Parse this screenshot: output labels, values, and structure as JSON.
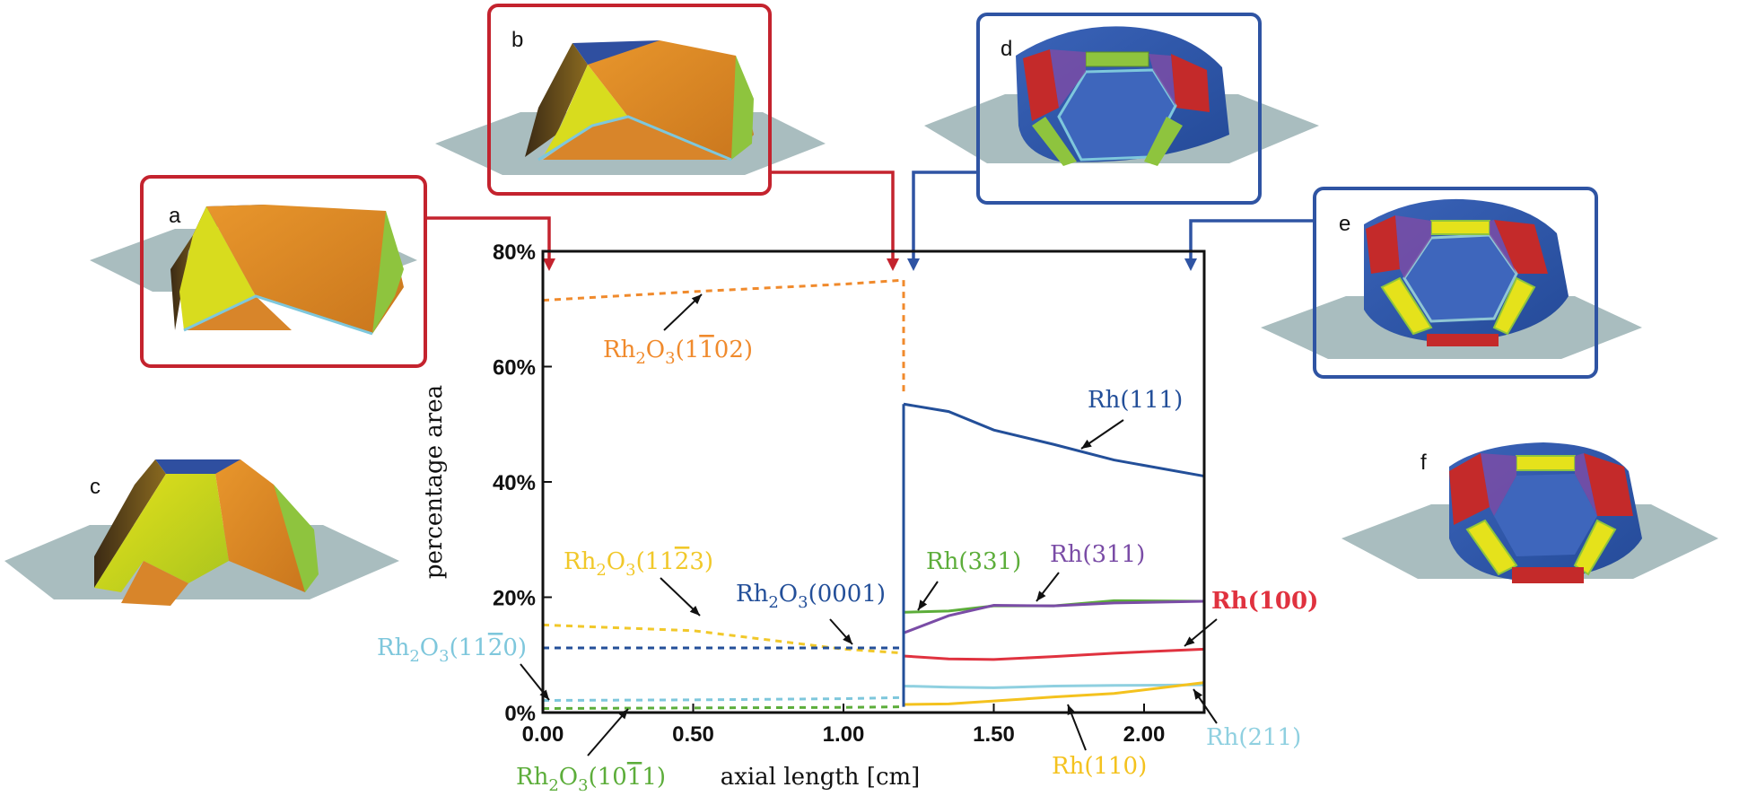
{
  "panels": [
    {
      "letter": "a",
      "framed": true,
      "frame_color": "#c4232e"
    },
    {
      "letter": "b",
      "framed": true,
      "frame_color": "#c4232e"
    },
    {
      "letter": "c",
      "framed": false
    },
    {
      "letter": "d",
      "framed": true,
      "frame_color": "#2f54a3"
    },
    {
      "letter": "e",
      "framed": true,
      "frame_color": "#2f54a3"
    },
    {
      "letter": "f",
      "framed": false
    }
  ],
  "chart_data": {
    "type": "line",
    "xlabel": "axial length [cm]",
    "ylabel": "percentage area",
    "xlim": [
      0,
      2.2
    ],
    "ylim": [
      0,
      80
    ],
    "xticks": [
      "0.00",
      "0.50",
      "1.00",
      "1.50",
      "2.00"
    ],
    "xtick_values": [
      0,
      0.5,
      1.0,
      1.5,
      2.0
    ],
    "yticks": [
      "0%",
      "20%",
      "40%",
      "60%",
      "80%"
    ],
    "ytick_values": [
      0,
      20,
      40,
      60,
      80
    ],
    "oxide_region": [
      0,
      1.2
    ],
    "metal_region": [
      1.2,
      2.2
    ],
    "series": [
      {
        "name": "Rh2O3(1-102)",
        "color": "#f08a2c",
        "dashed": true,
        "x": [
          0,
          0.5,
          1.0,
          1.2
        ],
        "y": [
          71.5,
          73,
          74.3,
          75
        ]
      },
      {
        "name": "Rh2O3(11-23)",
        "color": "#f1c82a",
        "dashed": true,
        "x": [
          0,
          0.5,
          1.0,
          1.2
        ],
        "y": [
          15.2,
          14.2,
          11.0,
          10.3
        ]
      },
      {
        "name": "Rh2O3(0001)",
        "color": "#234f99",
        "dashed": true,
        "x": [
          0,
          0.5,
          1.0,
          1.2
        ],
        "y": [
          11.2,
          11.2,
          11.2,
          11.2
        ]
      },
      {
        "name": "Rh2O3(11-20)",
        "color": "#7ec7dc",
        "dashed": true,
        "x": [
          0,
          0.5,
          1.0,
          1.2
        ],
        "y": [
          2.1,
          2.2,
          2.4,
          2.6
        ]
      },
      {
        "name": "Rh2O3(10-11)",
        "color": "#5cad3a",
        "dashed": true,
        "x": [
          0,
          0.5,
          1.0,
          1.2
        ],
        "y": [
          0.7,
          0.8,
          0.9,
          1.0
        ]
      },
      {
        "name": "Rh(111)",
        "color": "#234f99",
        "dashed": false,
        "x": [
          1.2,
          1.35,
          1.5,
          1.7,
          1.9,
          2.2
        ],
        "y": [
          53.5,
          52.2,
          49,
          46.5,
          43.8,
          41
        ]
      },
      {
        "name": "Rh(331)",
        "color": "#5cad3a",
        "dashed": false,
        "x": [
          1.2,
          1.35,
          1.5,
          1.7,
          1.9,
          2.2
        ],
        "y": [
          17.4,
          17.6,
          18.5,
          18.5,
          19.4,
          19.3
        ]
      },
      {
        "name": "Rh(311)",
        "color": "#7a4ca6",
        "dashed": false,
        "x": [
          1.2,
          1.35,
          1.5,
          1.7,
          1.9,
          2.2
        ],
        "y": [
          13.8,
          16.8,
          18.6,
          18.5,
          19.0,
          19.3
        ]
      },
      {
        "name": "Rh(100)",
        "color": "#e0323f",
        "dashed": false,
        "x": [
          1.2,
          1.35,
          1.5,
          1.7,
          1.9,
          2.2
        ],
        "y": [
          9.8,
          9.3,
          9.2,
          9.7,
          10.3,
          11.0
        ]
      },
      {
        "name": "Rh(211)",
        "color": "#8fd0e0",
        "dashed": false,
        "x": [
          1.2,
          1.35,
          1.5,
          1.7,
          1.9,
          2.2
        ],
        "y": [
          4.6,
          4.4,
          4.3,
          4.6,
          4.7,
          4.8
        ]
      },
      {
        "name": "Rh(110)",
        "color": "#f4c21e",
        "dashed": false,
        "x": [
          1.2,
          1.35,
          1.5,
          1.7,
          1.9,
          2.2
        ],
        "y": [
          1.4,
          1.5,
          2.0,
          2.7,
          3.3,
          5.2
        ]
      }
    ],
    "jump_lines": [
      {
        "series": "Rh2O3(1-102)",
        "color": "#f08a2c",
        "dashed": true,
        "x": 1.2,
        "y": [
          75,
          55
        ]
      },
      {
        "series": "Rh(111)",
        "color": "#234f99",
        "dashed": false,
        "x": 1.2,
        "y": [
          1.0,
          53.5
        ]
      }
    ],
    "annotations": [
      {
        "text": "Rh₂O₃(1Đ1̅ 02)",
        "color": "#f08a2c"
      }
    ],
    "series_labels": {
      "Rh2O3(1-102)": {
        "base": "Rh",
        "sub1": "2",
        "mid": "O",
        "sub2": "3",
        "open": "(",
        "a": "1",
        "bar": "1",
        "b": "02",
        "close": ")",
        "color": "#f08a2c"
      },
      "Rh2O3(11-23)": {
        "base": "Rh",
        "sub1": "2",
        "mid": "O",
        "sub2": "3",
        "open": "(",
        "a": "11",
        "bar": "2",
        "b": "3",
        "close": ")",
        "color": "#f1c82a"
      },
      "Rh2O3(0001)": {
        "text": "0001",
        "base": "Rh",
        "sub1": "2",
        "mid": "O",
        "sub2": "3",
        "color": "#234f99"
      },
      "Rh2O3(11-20)": {
        "base": "Rh",
        "sub1": "2",
        "mid": "O",
        "sub2": "3",
        "open": "(",
        "a": "11",
        "bar": "2",
        "b": "0",
        "close": ")",
        "color": "#7ec7dc"
      },
      "Rh2O3(10-11)": {
        "base": "Rh",
        "sub1": "2",
        "mid": "O",
        "sub2": "3",
        "open": "(",
        "a": "10",
        "bar": "1",
        "b": "1",
        "close": ")",
        "color": "#5cad3a"
      },
      "Rh(111)": {
        "text": "Rh(111)",
        "color": "#234f99"
      },
      "Rh(331)": {
        "text": "Rh(331)",
        "color": "#5cad3a"
      },
      "Rh(311)": {
        "text": "Rh(311)",
        "color": "#7a4ca6"
      },
      "Rh(100)": {
        "text": "Rh(100)",
        "color": "#e0323f"
      },
      "Rh(211)": {
        "text": "Rh(211)",
        "color": "#8fd0e0"
      },
      "Rh(110)": {
        "text": "Rh(110)",
        "color": "#f4c21e"
      }
    }
  }
}
